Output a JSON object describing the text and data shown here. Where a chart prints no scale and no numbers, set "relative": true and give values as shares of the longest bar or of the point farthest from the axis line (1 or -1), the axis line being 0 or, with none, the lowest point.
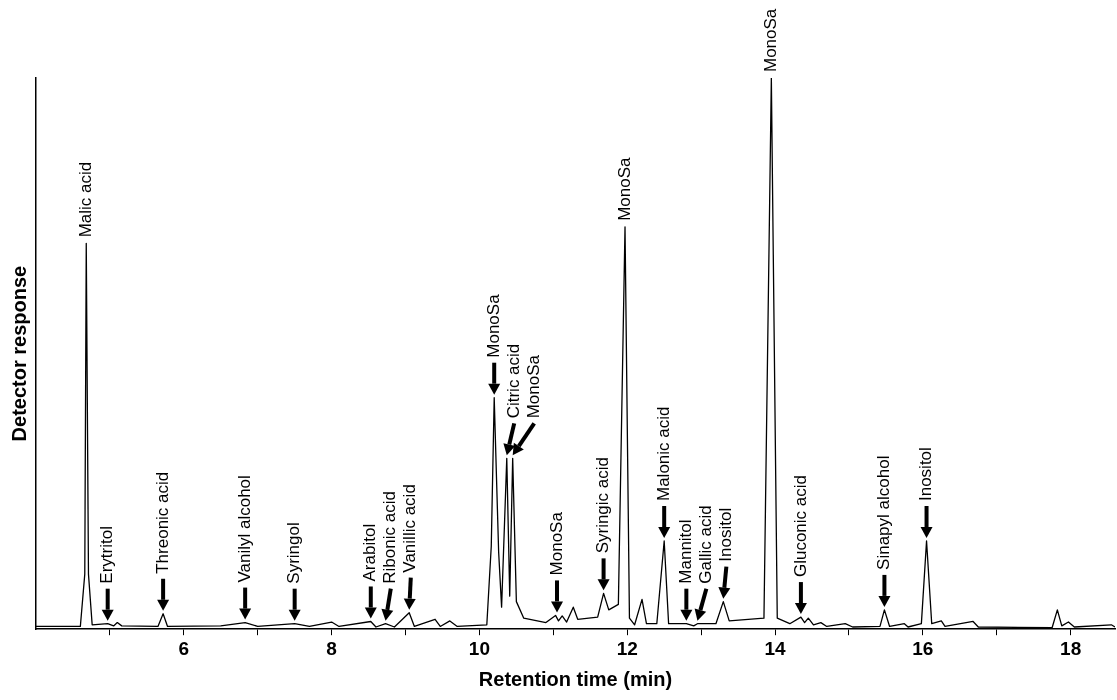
{
  "chart_data": {
    "type": "line",
    "relative": true,
    "xlabel": "Retention time (min)",
    "ylabel": "Detector response",
    "xlim": [
      4,
      18.6
    ],
    "xticks": [
      {
        "value": 5,
        "label": null
      },
      6,
      {
        "value": 7,
        "label": null
      },
      8,
      {
        "value": 9,
        "label": null
      },
      10,
      {
        "value": 11,
        "label": null
      },
      12,
      {
        "value": 13,
        "label": null
      },
      14,
      {
        "value": 15,
        "label": null
      },
      16,
      {
        "value": 17,
        "label": null
      },
      18
    ],
    "grid": false,
    "marker": "none",
    "line_style": "solid",
    "x": [
      4.0,
      4.6,
      4.66,
      4.68,
      4.71,
      4.76,
      4.97,
      5.05,
      5.1,
      5.16,
      5.65,
      5.72,
      5.78,
      6.5,
      6.83,
      7.0,
      7.5,
      7.7,
      8.0,
      8.1,
      8.53,
      8.6,
      8.73,
      8.85,
      9.05,
      9.12,
      9.4,
      9.47,
      9.6,
      9.7,
      10.1,
      10.16,
      10.2,
      10.26,
      10.3,
      10.37,
      10.41,
      10.45,
      10.5,
      10.6,
      10.9,
      11.03,
      11.07,
      11.12,
      11.18,
      11.27,
      11.33,
      11.6,
      11.68,
      11.75,
      11.88,
      11.97,
      12.03,
      12.1,
      12.2,
      12.26,
      12.4,
      12.5,
      12.56,
      12.8,
      12.9,
      12.95,
      13.2,
      13.3,
      13.38,
      13.85,
      13.95,
      14.03,
      14.2,
      14.35,
      14.4,
      14.45,
      14.52,
      14.62,
      14.7,
      14.95,
      15.05,
      15.42,
      15.48,
      15.55,
      15.75,
      15.8,
      15.98,
      16.05,
      16.12,
      16.25,
      16.3,
      16.68,
      16.75,
      17.75,
      17.82,
      17.88,
      17.97,
      18.05,
      18.55,
      18.6
    ],
    "series": [
      {
        "color": "#000000",
        "values": [
          0.005,
          0.005,
          0.1,
          0.7,
          0.1,
          0.008,
          0.01,
          0.006,
          0.012,
          0.006,
          0.005,
          0.028,
          0.005,
          0.006,
          0.012,
          0.005,
          0.01,
          0.005,
          0.013,
          0.005,
          0.014,
          0.004,
          0.01,
          0.004,
          0.03,
          0.005,
          0.018,
          0.005,
          0.015,
          0.005,
          0.008,
          0.15,
          0.42,
          0.14,
          0.04,
          0.31,
          0.06,
          0.31,
          0.05,
          0.02,
          0.012,
          0.025,
          0.015,
          0.024,
          0.013,
          0.04,
          0.018,
          0.022,
          0.065,
          0.035,
          0.045,
          0.73,
          0.02,
          0.008,
          0.054,
          0.01,
          0.01,
          0.16,
          0.01,
          0.01,
          0.006,
          0.01,
          0.01,
          0.05,
          0.015,
          0.02,
          1.0,
          0.02,
          0.01,
          0.022,
          0.012,
          0.02,
          0.008,
          0.012,
          0.005,
          0.01,
          0.004,
          0.005,
          0.035,
          0.005,
          0.01,
          0.004,
          0.01,
          0.16,
          0.01,
          0.015,
          0.005,
          0.014,
          0.004,
          0.003,
          0.035,
          0.006,
          0.013,
          0.004,
          0.008,
          0.004
        ]
      }
    ],
    "annotations": [
      {
        "text": "Malic acid",
        "x": 4.68,
        "y": 0.7
      },
      {
        "text": "Erytritol",
        "x": 4.97,
        "y": 0.01
      },
      {
        "text": "Threonic acid",
        "x": 5.72,
        "y": 0.028
      },
      {
        "text": "Vanilyl alcohol",
        "x": 6.83,
        "y": 0.012
      },
      {
        "text": "Syringol",
        "x": 7.5,
        "y": 0.01
      },
      {
        "text": "Arabitol",
        "x": 8.53,
        "y": 0.014
      },
      {
        "text": "Ribonic acid",
        "x": 8.73,
        "y": 0.01
      },
      {
        "text": "Vanillic acid",
        "x": 9.05,
        "y": 0.03
      },
      {
        "text": "MonoSa",
        "x": 10.2,
        "y": 0.42
      },
      {
        "text": "Citric acid",
        "x": 10.37,
        "y": 0.31
      },
      {
        "text": "MonoSa",
        "x": 10.45,
        "y": 0.31
      },
      {
        "text": "MonoSa",
        "x": 11.05,
        "y": 0.025
      },
      {
        "text": "Syringic acid",
        "x": 11.68,
        "y": 0.065
      },
      {
        "text": "MonoSa",
        "x": 11.97,
        "y": 0.73
      },
      {
        "text": "Malonic acid",
        "x": 12.5,
        "y": 0.16
      },
      {
        "text": "Mannitol",
        "x": 12.8,
        "y": 0.01
      },
      {
        "text": "Gallic acid",
        "x": 12.95,
        "y": 0.01
      },
      {
        "text": "Inositol",
        "x": 13.3,
        "y": 0.05
      },
      {
        "text": "MonoSa",
        "x": 13.95,
        "y": 1.0
      },
      {
        "text": "Gluconic acid",
        "x": 14.35,
        "y": 0.022
      },
      {
        "text": "Sinapyl alcohol",
        "x": 15.48,
        "y": 0.035
      },
      {
        "text": "Inositol",
        "x": 16.05,
        "y": 0.16
      }
    ]
  }
}
